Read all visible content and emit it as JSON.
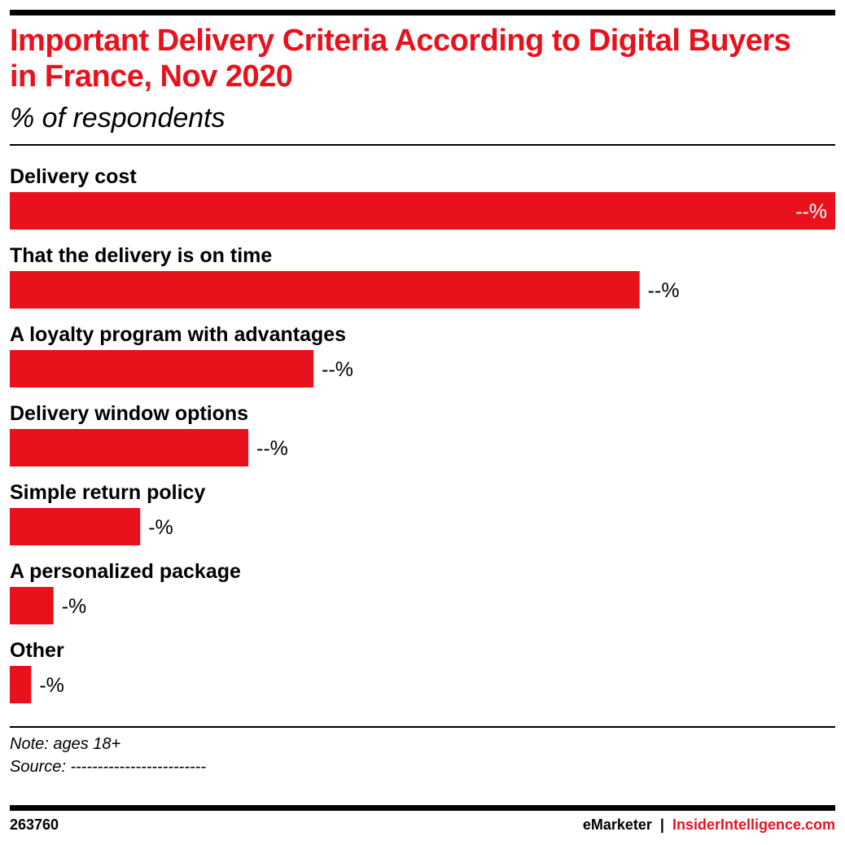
{
  "accent_color": "#e8111c",
  "chart_data": {
    "type": "bar",
    "orientation": "horizontal",
    "title": "Important Delivery Criteria According to Digital Buyers in France, Nov 2020",
    "subtitle": "% of respondents",
    "categories": [
      "Delivery cost",
      "That the delivery is on time",
      "A loyalty program with advantages",
      "Delivery window options",
      "Simple return policy",
      "A personalized package",
      "Other"
    ],
    "values": [
      100,
      76.3,
      36.8,
      28.9,
      15.8,
      5.3,
      2.6
    ],
    "value_labels": [
      "--%",
      "--%",
      "--%",
      "--%",
      "-%",
      "-%",
      "-%"
    ],
    "bar_color": "#e8111c",
    "label_position": "above-bar",
    "first_value_label_inside": true,
    "grid": false,
    "legend": "none"
  },
  "footer": {
    "note": "Note: ages 18+",
    "source": "Source: -------------------------",
    "chart_id": "263760",
    "brand_left": "eMarketer",
    "brand_separator": "|",
    "brand_right": "InsiderIntelligence.com"
  }
}
